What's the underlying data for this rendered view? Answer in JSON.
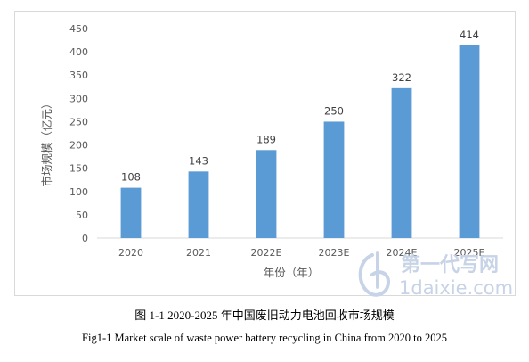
{
  "chart_data": {
    "type": "bar",
    "categories": [
      "2020",
      "2021",
      "2022E",
      "2023E",
      "2024E",
      "2025E"
    ],
    "values": [
      108,
      143,
      189,
      250,
      322,
      414
    ],
    "ylabel": "市场规模（亿元）",
    "xlabel": "年份（年）",
    "ylim": [
      0,
      450
    ],
    "yticks": [
      0,
      50,
      100,
      150,
      200,
      250,
      300,
      350,
      400,
      450
    ],
    "grid": false,
    "bar_color": "#5b9bd5",
    "data_labels": true
  },
  "captions": {
    "cn": "图 1-1 2020-2025 年中国废旧动力电池回收市场规模",
    "en": "Fig1-1 Market scale of waste power battery recycling in China from 2020 to 2025"
  },
  "watermark": {
    "cn": "第一代写网",
    "url": "1daixie.com",
    "color": "#c7d3e6"
  }
}
